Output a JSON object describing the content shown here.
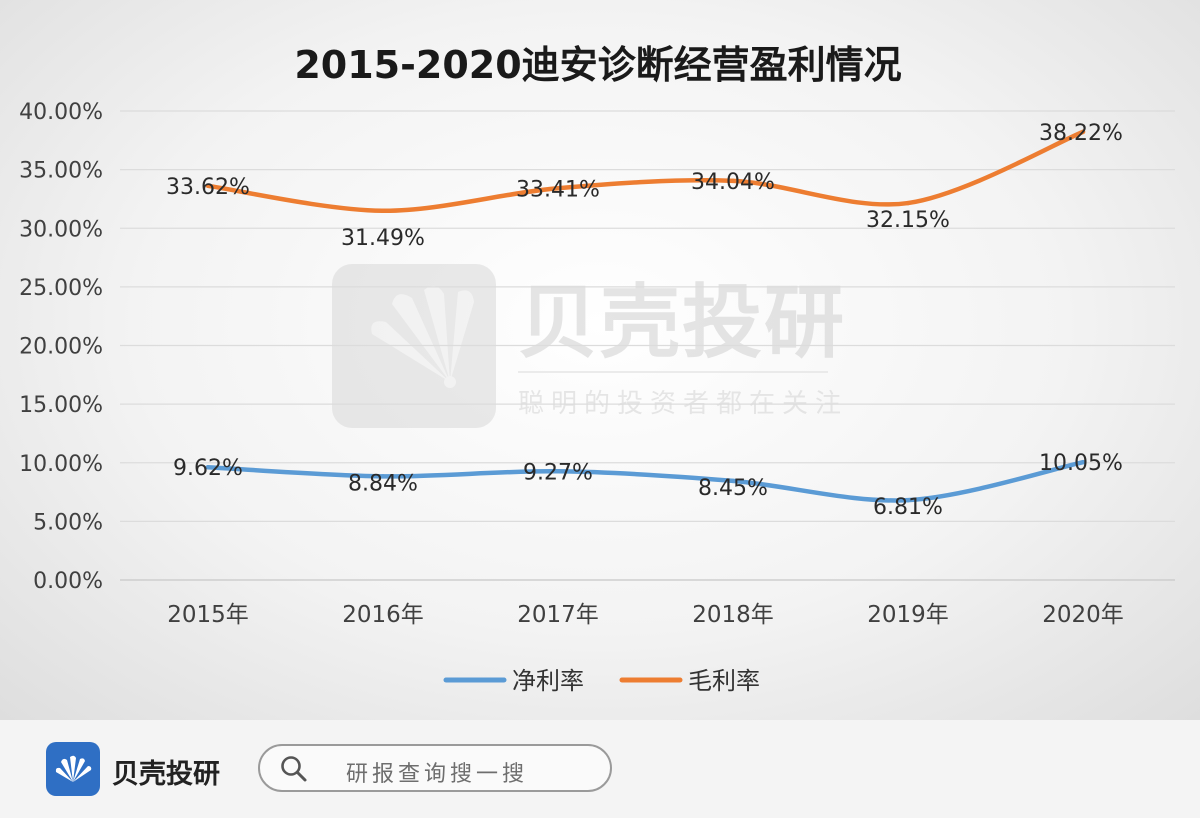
{
  "chart_data": {
    "type": "line",
    "title": "2015-2020迪安诊断经营盈利情况",
    "categories": [
      "2015年",
      "2016年",
      "2017年",
      "2018年",
      "2019年",
      "2020年"
    ],
    "series": [
      {
        "name": "净利率",
        "color": "#5b9bd5",
        "values": [
          9.62,
          8.84,
          9.27,
          8.45,
          6.81,
          10.05
        ],
        "labels": [
          "9.62%",
          "8.84%",
          "9.27%",
          "8.45%",
          "6.81%",
          "10.05%"
        ]
      },
      {
        "name": "毛利率",
        "color": "#ed7d31",
        "values": [
          33.62,
          31.49,
          33.41,
          34.04,
          32.15,
          38.22
        ],
        "labels": [
          "33.62%",
          "31.49%",
          "33.41%",
          "34.04%",
          "32.15%",
          "38.22%"
        ]
      }
    ],
    "ylim": [
      0,
      40
    ],
    "y_ticks": [
      "0.00%",
      "5.00%",
      "10.00%",
      "15.00%",
      "20.00%",
      "25.00%",
      "30.00%",
      "35.00%",
      "40.00%"
    ],
    "grid": true,
    "legend_position": "bottom"
  },
  "watermark": {
    "brand": "贝壳投研",
    "slogan": "聪明的投资者都在关注"
  },
  "footer": {
    "brand": "贝壳投研",
    "search_placeholder": "研报查询搜一搜",
    "icons": [
      "shell-logo-icon",
      "search-icon"
    ]
  }
}
